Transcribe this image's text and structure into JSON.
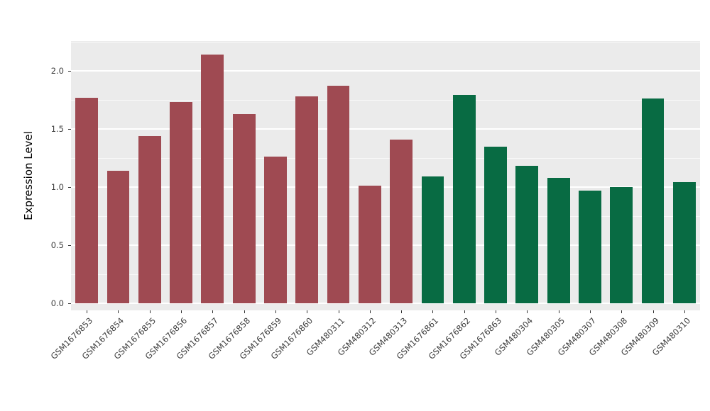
{
  "chart_data": {
    "type": "bar",
    "title": "",
    "xlabel": "",
    "ylabel": "Expression Level",
    "ylim": [
      0,
      2.25
    ],
    "grid": true,
    "legend": "none",
    "categories": [
      "GSM1676853",
      "GSM1676854",
      "GSM1676855",
      "GSM1676856",
      "GSM1676857",
      "GSM1676858",
      "GSM1676859",
      "GSM1676860",
      "GSM480311",
      "GSM480312",
      "GSM480313",
      "GSM1676861",
      "GSM1676862",
      "GSM1676863",
      "GSM480304",
      "GSM480305",
      "GSM480307",
      "GSM480308",
      "GSM480309",
      "GSM480310"
    ],
    "values": [
      1.77,
      1.14,
      1.44,
      1.73,
      2.14,
      1.63,
      1.26,
      1.78,
      1.87,
      1.01,
      1.41,
      1.09,
      1.79,
      1.35,
      1.18,
      1.08,
      0.97,
      1.0,
      1.76,
      1.04
    ],
    "groups": [
      0,
      0,
      0,
      0,
      0,
      0,
      0,
      0,
      0,
      0,
      0,
      1,
      1,
      1,
      1,
      1,
      1,
      1,
      1,
      1
    ],
    "group_colors": [
      "#9F4A52",
      "#086B43"
    ],
    "yticks": [
      {
        "value": 0.0,
        "label": "0.0"
      },
      {
        "value": 0.5,
        "label": "0.5"
      },
      {
        "value": 1.0,
        "label": "1.0"
      },
      {
        "value": 1.5,
        "label": "1.5"
      },
      {
        "value": 2.0,
        "label": "2.0"
      }
    ],
    "minor_ticks": [
      0.25,
      0.75,
      1.25,
      1.75,
      2.25
    ]
  },
  "colors": {
    "panel_background": "#EBEBEB",
    "grid": "#FFFFFF",
    "axis_text": "#404040",
    "tick_mark": "#333333"
  }
}
